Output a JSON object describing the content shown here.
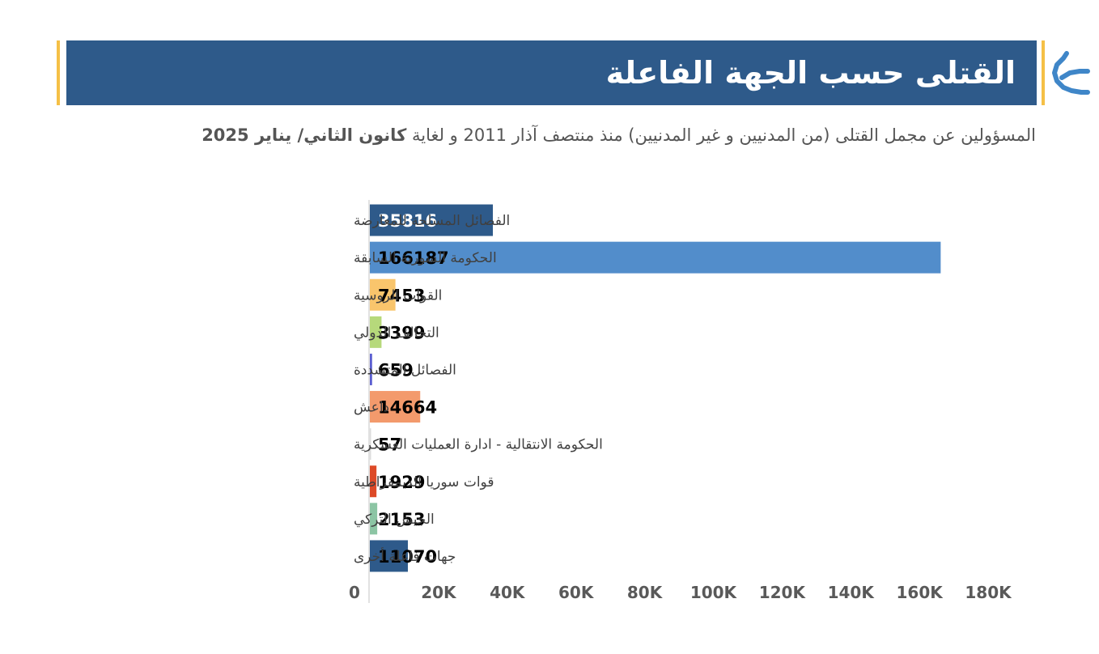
{
  "header": {
    "title": "القتلى حسب الجهة الفاعلة",
    "logo_icon": "organization-logo-icon"
  },
  "subtitle": {
    "text": "المسؤولين عن مجمل القتلى (من المدنيين و غير المدنيين) منذ منتصف آذار 2011 و لغاية",
    "bold": "كانون الثاني/ يناير 2025"
  },
  "colors": {
    "title_band": "#2e5a8a",
    "accent": "#f5c046"
  },
  "chart_data": {
    "type": "bar",
    "orientation": "horizontal",
    "title": "",
    "xlabel": "",
    "ylabel": "",
    "xlim": [
      0,
      180000
    ],
    "x_ticks": [
      0,
      20000,
      40000,
      60000,
      80000,
      100000,
      120000,
      140000,
      160000,
      180000
    ],
    "x_tick_labels": [
      "0",
      "20K",
      "40K",
      "60K",
      "80K",
      "100K",
      "120K",
      "140K",
      "160K",
      "180K"
    ],
    "grid": false,
    "legend": "none",
    "categories": [
      "الفصائل المسلحة للمعارضة",
      "الحكومة السورية السابقة",
      "القوات الروسية",
      "التحالف الدولي",
      "الفصائل المتشددة",
      "داعش",
      "الحكومة الانتقالية - ادارة العمليات العسكرية",
      "قوات سوريا الديمقراطية",
      "الجيش التركي",
      "جهات فاعلة أخرى"
    ],
    "values": [
      35816,
      166187,
      7453,
      3399,
      659,
      14664,
      57,
      1929,
      2153,
      11070
    ],
    "data_labels": [
      "35816",
      "166187",
      "7453",
      "3399",
      "659",
      "14664",
      "57",
      "1929",
      "2153",
      "11070"
    ],
    "bar_colors": [
      "#2e5a8a",
      "#528dcb",
      "#f9c56c",
      "#b6d97b",
      "#5b5fd1",
      "#f39a6c",
      "#dcdcdc",
      "#dd4a27",
      "#8cc5a4",
      "#2e5a8a"
    ],
    "label_colors": [
      "#ffffff",
      "#000000",
      "#000000",
      "#000000",
      "#000000",
      "#000000",
      "#000000",
      "#000000",
      "#000000",
      "#000000"
    ]
  }
}
